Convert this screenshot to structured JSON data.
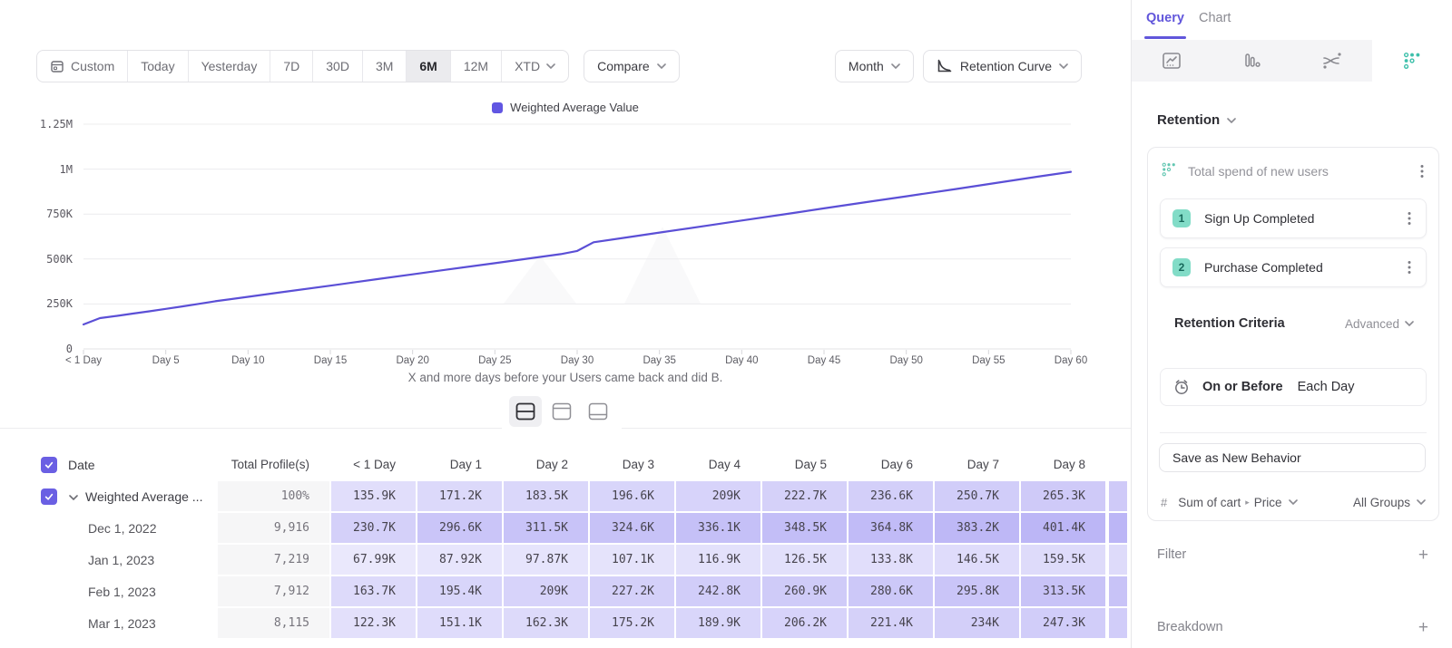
{
  "toolbar": {
    "ranges": [
      {
        "label": "Custom",
        "icon": "calendar"
      },
      {
        "label": "Today"
      },
      {
        "label": "Yesterday"
      },
      {
        "label": "7D"
      },
      {
        "label": "30D"
      },
      {
        "label": "3M"
      },
      {
        "label": "6M",
        "active": true
      },
      {
        "label": "12M"
      },
      {
        "label": "XTD",
        "chevron": true
      }
    ],
    "compare_label": "Compare",
    "granularity_label": "Month",
    "chart_type_label": "Retention Curve"
  },
  "chart_data": {
    "type": "line",
    "legend": [
      {
        "name": "Weighted Average Value",
        "color": "#6156e2"
      }
    ],
    "caption": "X and more days before your Users came back and did B.",
    "y_ticks": [
      {
        "label": "0",
        "value": 0
      },
      {
        "label": "250K",
        "value": 250
      },
      {
        "label": "500K",
        "value": 500
      },
      {
        "label": "750K",
        "value": 750
      },
      {
        "label": "1M",
        "value": 1000
      },
      {
        "label": "1.25M",
        "value": 1250
      }
    ],
    "ylim_k": [
      0,
      1250
    ],
    "x_ticks": [
      {
        "label": "< 1 Day",
        "day": 0
      },
      {
        "label": "Day 5",
        "day": 5
      },
      {
        "label": "Day 10",
        "day": 10
      },
      {
        "label": "Day 15",
        "day": 15
      },
      {
        "label": "Day 20",
        "day": 20
      },
      {
        "label": "Day 25",
        "day": 25
      },
      {
        "label": "Day 30",
        "day": 30
      },
      {
        "label": "Day 35",
        "day": 35
      },
      {
        "label": "Day 40",
        "day": 40
      },
      {
        "label": "Day 45",
        "day": 45
      },
      {
        "label": "Day 50",
        "day": 50
      },
      {
        "label": "Day 55",
        "day": 55
      },
      {
        "label": "Day 60",
        "day": 60
      }
    ],
    "xlim_days": [
      0,
      60
    ],
    "series": [
      {
        "name": "Weighted Average Value",
        "color": "#5b4fd6",
        "points_day_valueK": [
          [
            0,
            136
          ],
          [
            1,
            171.2
          ],
          [
            2,
            183.5
          ],
          [
            3,
            196.6
          ],
          [
            4,
            209
          ],
          [
            5,
            222.7
          ],
          [
            6,
            236.6
          ],
          [
            7,
            250.7
          ],
          [
            8,
            265.3
          ],
          [
            10,
            290
          ],
          [
            12,
            315
          ],
          [
            15,
            352
          ],
          [
            18,
            390
          ],
          [
            20,
            415
          ],
          [
            22,
            440
          ],
          [
            25,
            477
          ],
          [
            27,
            502
          ],
          [
            29,
            527
          ],
          [
            30,
            545
          ],
          [
            31,
            593
          ],
          [
            33,
            620
          ],
          [
            35,
            647
          ],
          [
            38,
            687
          ],
          [
            40,
            714
          ],
          [
            43,
            754
          ],
          [
            45,
            782
          ],
          [
            48,
            822
          ],
          [
            50,
            849
          ],
          [
            53,
            889
          ],
          [
            55,
            917
          ],
          [
            58,
            958
          ],
          [
            60,
            985
          ]
        ]
      }
    ],
    "grid": true,
    "legend_position": "top-center"
  },
  "view_toggle": [
    {
      "name": "split-view",
      "active": true
    },
    {
      "name": "chart-only-view",
      "active": false
    },
    {
      "name": "table-only-view",
      "active": false
    }
  ],
  "table": {
    "date_header": "Date",
    "columns": [
      "Total Profile(s)",
      "< 1 Day",
      "Day 1",
      "Day 2",
      "Day 3",
      "Day 4",
      "Day 5",
      "Day 6",
      "Day 7",
      "Day 8"
    ],
    "rows": [
      {
        "label": "Weighted Average ...",
        "expandable": true,
        "checked": true,
        "profiles": "100%",
        "values": [
          "135.9K",
          "171.2K",
          "183.5K",
          "196.6K",
          "209K",
          "222.7K",
          "236.6K",
          "250.7K",
          "265.3K"
        ]
      },
      {
        "label": "Dec 1, 2022",
        "profiles": "9,916",
        "values": [
          "230.7K",
          "296.6K",
          "311.5K",
          "324.6K",
          "336.1K",
          "348.5K",
          "364.8K",
          "383.2K",
          "401.4K"
        ]
      },
      {
        "label": "Jan 1, 2023",
        "profiles": "7,219",
        "values": [
          "67.99K",
          "87.92K",
          "97.87K",
          "107.1K",
          "116.9K",
          "126.5K",
          "133.8K",
          "146.5K",
          "159.5K"
        ]
      },
      {
        "label": "Feb 1, 2023",
        "profiles": "7,912",
        "values": [
          "163.7K",
          "195.4K",
          "209K",
          "227.2K",
          "242.8K",
          "260.9K",
          "280.6K",
          "295.8K",
          "313.5K"
        ]
      },
      {
        "label": "Mar 1, 2023",
        "profiles": "8,115",
        "values": [
          "122.3K",
          "151.1K",
          "162.3K",
          "175.2K",
          "189.9K",
          "206.2K",
          "221.4K",
          "234K",
          "247.3K"
        ]
      }
    ]
  },
  "sidebar": {
    "tabs": [
      {
        "label": "Query",
        "active": true
      },
      {
        "label": "Chart",
        "active": false
      }
    ],
    "icon_tabs": [
      {
        "name": "line-chart",
        "active": false
      },
      {
        "name": "bar-chart",
        "active": false
      },
      {
        "name": "flow",
        "active": false
      },
      {
        "name": "retention",
        "active": true
      }
    ],
    "section_label": "Retention",
    "behavior": {
      "title": "Total spend of new users",
      "steps": [
        {
          "num": "1",
          "label": "Sign Up Completed"
        },
        {
          "num": "2",
          "label": "Purchase Completed"
        }
      ],
      "criteria_label": "Retention Criteria",
      "advanced_label": "Advanced",
      "timing_bold": "On or Before",
      "timing_value": "Each Day",
      "save_button_label": "Save as New Behavior",
      "metric_hash": "#",
      "metric_label": "Sum of cart",
      "metric_sub": "Price",
      "group_label": "All Groups"
    },
    "filter_label": "Filter",
    "breakdown_label": "Breakdown"
  },
  "colors": {
    "accent_purple": "#6156db",
    "line_purple": "#5b4fd6",
    "checkbox_purple": "#6a5fe3",
    "cell_base_rgb": "108,95,235",
    "teal": "#3ec0ab",
    "badge_bg": "#82dcc7",
    "badge_text": "#17685a",
    "grid_line": "#ececee",
    "axis_line": "#e3e3e6"
  }
}
